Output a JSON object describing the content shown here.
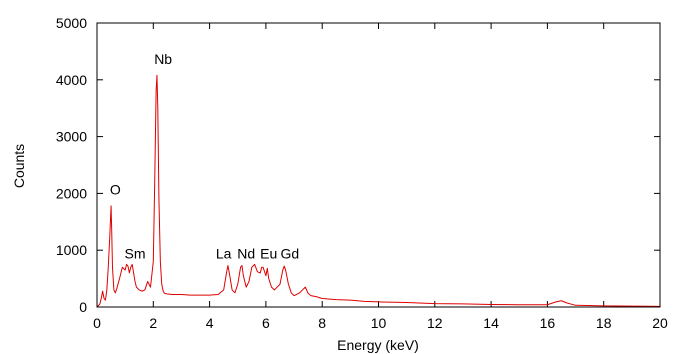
{
  "chart_data": {
    "type": "line",
    "title": "",
    "xlabel": "Energy (keV)",
    "ylabel": "Counts",
    "xlim": [
      0,
      20
    ],
    "ylim": [
      0,
      5000
    ],
    "x_ticks": [
      0,
      2,
      4,
      6,
      8,
      10,
      12,
      14,
      16,
      18,
      20
    ],
    "y_ticks": [
      0,
      1000,
      2000,
      3000,
      4000,
      5000
    ],
    "grid": false,
    "legend": "none",
    "line_color": "#e00000",
    "series": [
      {
        "x": [
          0,
          0.1,
          0.15,
          0.2,
          0.25,
          0.3,
          0.35,
          0.4,
          0.45,
          0.5,
          0.52,
          0.55,
          0.6,
          0.65,
          0.7,
          0.8,
          0.9,
          1.0,
          1.05,
          1.1,
          1.15,
          1.2,
          1.25,
          1.3,
          1.35,
          1.4,
          1.5,
          1.6,
          1.7,
          1.8,
          1.9,
          2.0,
          2.05,
          2.1,
          2.13,
          2.16,
          2.2,
          2.25,
          2.3,
          2.35,
          2.4,
          2.5,
          2.7,
          3.0,
          3.3,
          3.6,
          4.0,
          4.3,
          4.5,
          4.6,
          4.65,
          4.7,
          4.8,
          4.9,
          5.0,
          5.1,
          5.15,
          5.2,
          5.3,
          5.4,
          5.5,
          5.6,
          5.7,
          5.8,
          5.85,
          5.9,
          6.0,
          6.05,
          6.1,
          6.2,
          6.3,
          6.5,
          6.6,
          6.65,
          6.7,
          6.8,
          6.9,
          7.0,
          7.2,
          7.3,
          7.4,
          7.5,
          7.6,
          7.8,
          8.0,
          8.5,
          9.0,
          9.5,
          10.0,
          11.0,
          12.0,
          13.0,
          14.0,
          15.0,
          16.0,
          16.3,
          16.5,
          16.7,
          17.0,
          18.0,
          19.0,
          20.0
        ],
        "y": [
          0,
          50,
          150,
          280,
          150,
          120,
          300,
          700,
          1200,
          1780,
          1400,
          700,
          300,
          250,
          320,
          500,
          700,
          650,
          750,
          720,
          600,
          700,
          750,
          600,
          450,
          350,
          300,
          280,
          300,
          450,
          350,
          800,
          2200,
          3800,
          4080,
          3500,
          1900,
          800,
          400,
          280,
          240,
          230,
          220,
          220,
          210,
          210,
          210,
          220,
          300,
          600,
          730,
          600,
          300,
          250,
          400,
          700,
          730,
          550,
          350,
          450,
          700,
          750,
          620,
          600,
          700,
          700,
          550,
          680,
          500,
          350,
          300,
          400,
          650,
          720,
          650,
          400,
          250,
          200,
          250,
          300,
          350,
          240,
          200,
          180,
          150,
          130,
          120,
          100,
          90,
          80,
          60,
          55,
          45,
          40,
          40,
          90,
          110,
          70,
          30,
          20,
          15,
          10
        ]
      }
    ],
    "annotations": [
      {
        "text": "O",
        "x": 0.65,
        "y": 1980
      },
      {
        "text": "Nb",
        "x": 2.35,
        "y": 4280
      },
      {
        "text": "Sm",
        "x": 1.35,
        "y": 850
      },
      {
        "text": "La",
        "x": 4.5,
        "y": 850
      },
      {
        "text": "Nd",
        "x": 5.3,
        "y": 850
      },
      {
        "text": "Eu",
        "x": 6.1,
        "y": 850
      },
      {
        "text": "Gd",
        "x": 6.85,
        "y": 850
      }
    ]
  }
}
